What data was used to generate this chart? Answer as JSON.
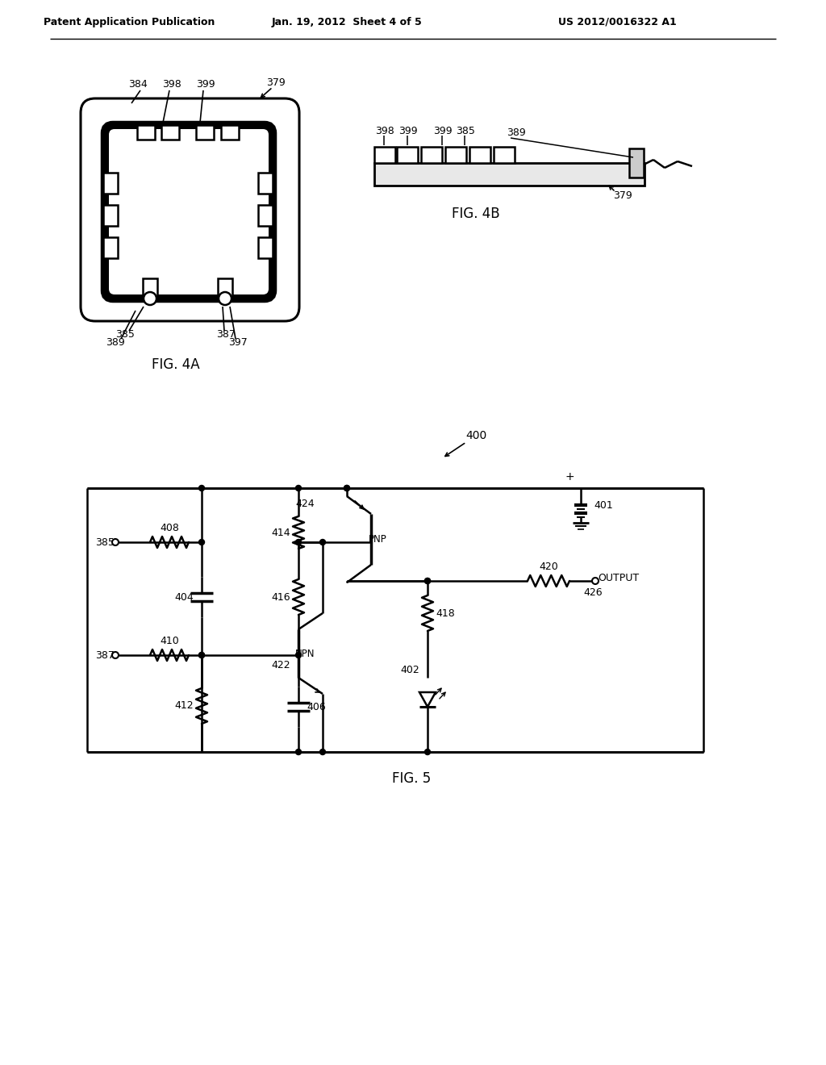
{
  "bg_color": "#ffffff",
  "line_color": "#000000",
  "text_color": "#000000",
  "header_left": "Patent Application Publication",
  "header_center": "Jan. 19, 2012  Sheet 4 of 5",
  "header_right": "US 2012/0016322 A1",
  "fig4a_label": "FIG. 4A",
  "fig4b_label": "FIG. 4B",
  "fig5_label": "FIG. 5"
}
